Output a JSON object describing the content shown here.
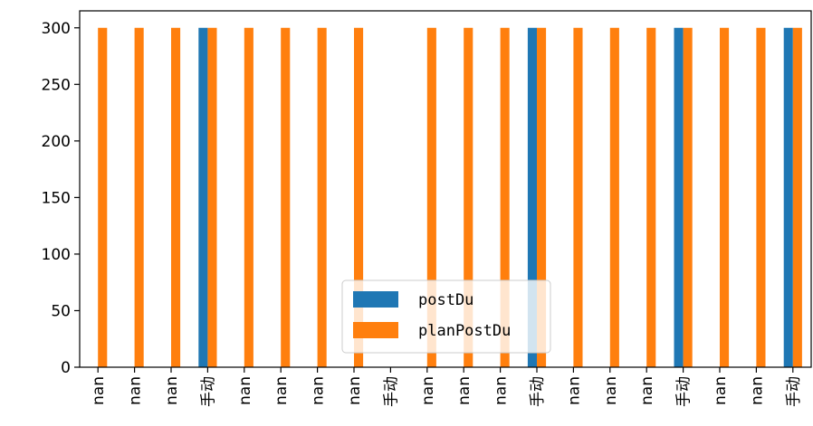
{
  "chart_data": {
    "type": "bar",
    "categories": [
      "nan",
      "nan",
      "nan",
      "手动",
      "nan",
      "nan",
      "nan",
      "nan",
      "手动",
      "nan",
      "nan",
      "nan",
      "手动",
      "nan",
      "nan",
      "nan",
      "手动",
      "nan",
      "nan",
      "手动"
    ],
    "series": [
      {
        "name": "postDu",
        "color": "#1f77b4",
        "values": [
          0,
          0,
          0,
          300,
          0,
          0,
          0,
          0,
          0,
          0,
          0,
          0,
          300,
          0,
          0,
          0,
          300,
          0,
          0,
          300
        ]
      },
      {
        "name": "planPostDu",
        "color": "#ff7f0e",
        "values": [
          300,
          300,
          300,
          300,
          300,
          300,
          300,
          300,
          0,
          300,
          300,
          300,
          300,
          300,
          300,
          300,
          300,
          300,
          300,
          300
        ]
      }
    ],
    "title": "",
    "xlabel": "",
    "ylabel": "",
    "ylim": [
      0,
      315
    ],
    "yticks": [
      0,
      50,
      100,
      150,
      200,
      250,
      300
    ],
    "grid": false,
    "legend_position": "lower-center"
  }
}
